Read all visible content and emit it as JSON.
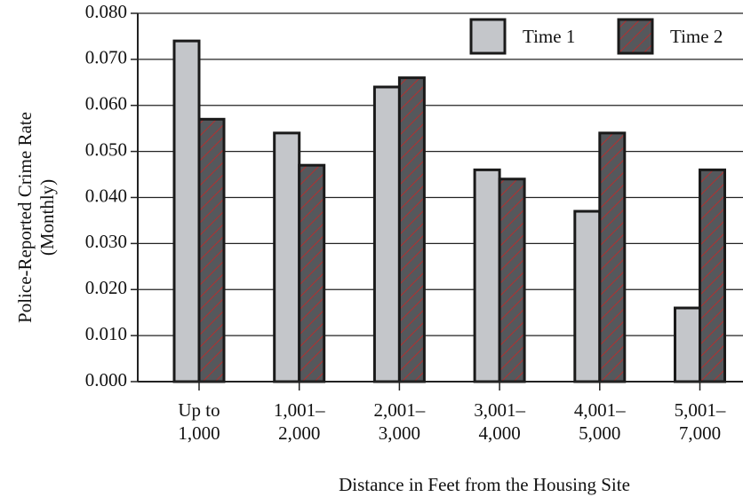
{
  "chart_data": {
    "type": "bar",
    "y_label": [
      "Police-Reported Crime Rate",
      "(Monthly)"
    ],
    "x_label": "Distance in Feet from the Housing Site",
    "categories": [
      [
        "Up to",
        "1,000"
      ],
      [
        "1,001–",
        "2,000"
      ],
      [
        "2,001–",
        "3,000"
      ],
      [
        "3,001–",
        "4,000"
      ],
      [
        "4,001–",
        "5,000"
      ],
      [
        "5,001–",
        "7,000"
      ]
    ],
    "series": [
      {
        "name": "Time 1",
        "color": "#c4c6ca",
        "values": [
          0.074,
          0.054,
          0.064,
          0.046,
          0.037,
          0.016
        ]
      },
      {
        "name": "Time 2",
        "color": "#55585c",
        "hatch": "#b03030",
        "values": [
          0.057,
          0.047,
          0.066,
          0.044,
          0.054,
          0.046
        ]
      }
    ],
    "ylim": [
      0,
      0.08
    ],
    "yticks": [
      {
        "value": 0,
        "label": "0.000"
      },
      {
        "value": 0.01,
        "label": "0.010"
      },
      {
        "value": 0.02,
        "label": "0.020"
      },
      {
        "value": 0.03,
        "label": "0.030"
      },
      {
        "value": 0.04,
        "label": "0.040"
      },
      {
        "value": 0.05,
        "label": "0.050"
      },
      {
        "value": 0.06,
        "label": "0.060"
      },
      {
        "value": 0.07,
        "label": "0.070"
      },
      {
        "value": 0.08,
        "label": "0.080"
      }
    ],
    "grid": true,
    "legend": "top-right"
  }
}
